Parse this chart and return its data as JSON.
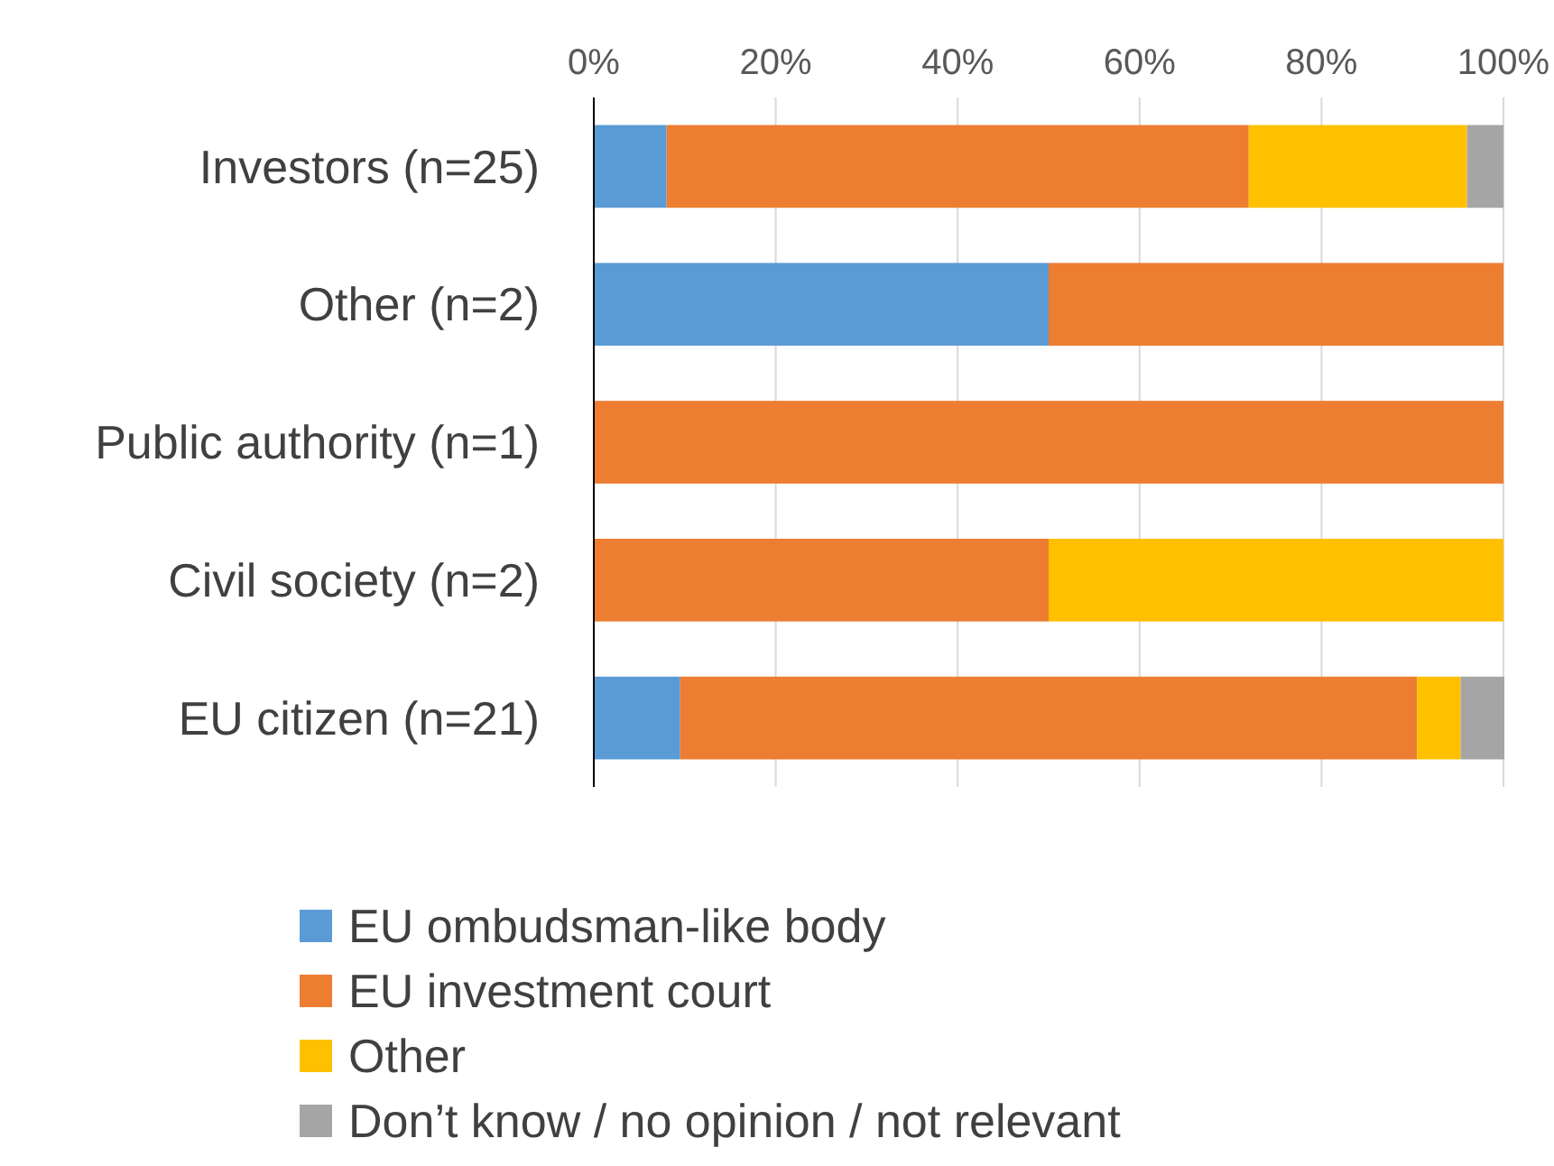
{
  "chart_data": {
    "type": "bar",
    "orientation": "horizontal",
    "stacked": true,
    "categories": [
      "Investors (n=25)",
      "Other (n=2)",
      "Public authority (n=1)",
      "Civil society (n=2)",
      "EU citizen (n=21)"
    ],
    "series": [
      {
        "name": "EU ombudsman-like body",
        "color": "#5b9bd5",
        "values": [
          8,
          50,
          0,
          0,
          9.5
        ]
      },
      {
        "name": "EU investment court",
        "color": "#ed7d31",
        "values": [
          64,
          50,
          100,
          50,
          81
        ]
      },
      {
        "name": "Other",
        "color": "#ffc000",
        "values": [
          24,
          0,
          0,
          50,
          4.8
        ]
      },
      {
        "name": "Don’t know / no opinion / not relevant",
        "color": "#a5a5a5",
        "values": [
          4,
          0,
          0,
          0,
          4.8
        ]
      }
    ],
    "xlim": [
      0,
      100
    ],
    "xticks": [
      {
        "value": 0,
        "label": "0%"
      },
      {
        "value": 20,
        "label": "20%"
      },
      {
        "value": 40,
        "label": "40%"
      },
      {
        "value": 60,
        "label": "60%"
      },
      {
        "value": 80,
        "label": "80%"
      },
      {
        "value": 100,
        "label": "100%"
      }
    ],
    "grid": "x",
    "legend": "bottom"
  }
}
